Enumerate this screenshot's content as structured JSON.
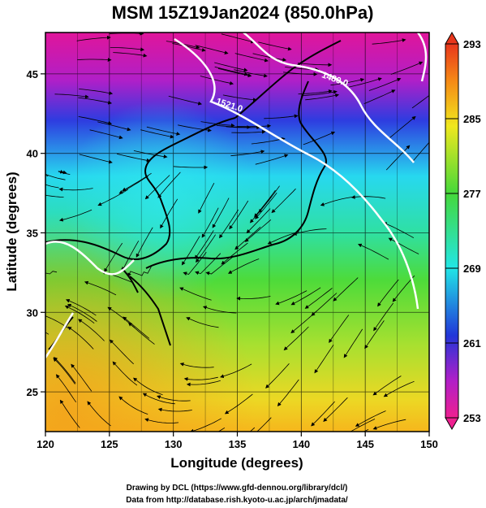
{
  "title": "MSM 15Z19Jan2024 (850.0hPa)",
  "xlabel": "Longitude (degrees)",
  "ylabel": "Latitude  (degrees)",
  "x_ticks": [
    "120",
    "125",
    "130",
    "135",
    "140",
    "145",
    "150"
  ],
  "y_ticks": [
    "25",
    "30",
    "35",
    "40",
    "45"
  ],
  "x_range": [
    120,
    150
  ],
  "y_range": [
    22.5,
    47.6
  ],
  "colorbar": {
    "ticks": [
      "293",
      "285",
      "277",
      "269",
      "261",
      "253"
    ],
    "range": [
      253,
      293
    ]
  },
  "contours": [
    {
      "label": "1480.0"
    },
    {
      "label": "1521.0"
    }
  ],
  "footer": {
    "line1": "Drawing by DCL (https://www.gfd-dennou.org/library/dcl/)",
    "line2": "Data from http://database.rish.kyoto-u.ac.jp/arch/jmadata/"
  },
  "colors": {
    "cold": "#cc1fb0",
    "cool": "#2244dd",
    "mid": "#27e0e6",
    "warm": "#4fd63a",
    "hot": "#f0e020",
    "contour": "#ffffff",
    "coast": "#000000"
  }
}
